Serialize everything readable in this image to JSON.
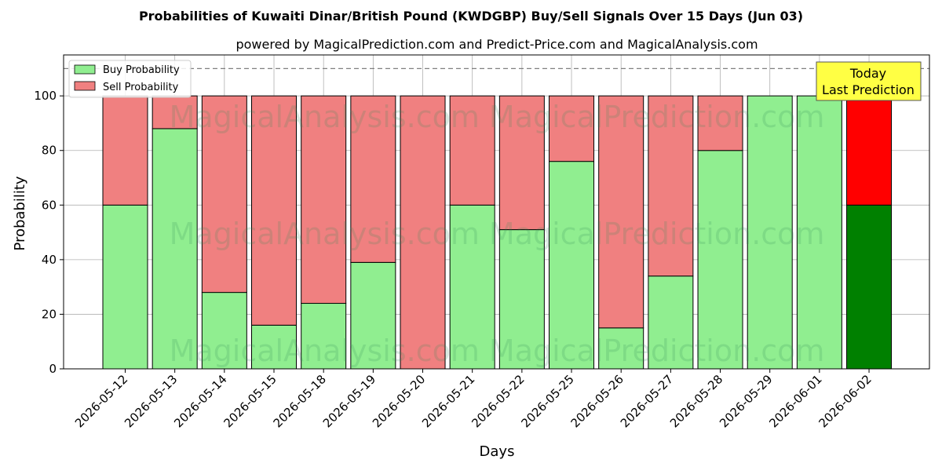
{
  "chart_data": {
    "type": "bar",
    "title": "Probabilities of Kuwaiti Dinar/British Pound (KWDGBP) Buy/Sell Signals Over 15 Days (Jun 03)",
    "subtitle": "powered by MagicalPrediction.com and Predict-Price.com and MagicalAnalysis.com",
    "xlabel": "Days",
    "ylabel": "Probability",
    "ylim": [
      0,
      115
    ],
    "yticks": [
      0,
      20,
      40,
      60,
      80,
      100
    ],
    "grid": true,
    "stacked": true,
    "legend_position": "top-left",
    "reference_line": 110,
    "categories": [
      "2026-05-12",
      "2026-05-13",
      "2026-05-14",
      "2026-05-15",
      "2026-05-18",
      "2026-05-19",
      "2026-05-20",
      "2026-05-21",
      "2026-05-22",
      "2026-05-25",
      "2026-05-26",
      "2026-05-27",
      "2026-05-28",
      "2026-05-29",
      "2026-06-01",
      "2026-06-02"
    ],
    "series": [
      {
        "name": "Buy Probability",
        "color": "#90ee90",
        "values": [
          60,
          88,
          28,
          16,
          24,
          39,
          0,
          60,
          51,
          76,
          15,
          34,
          80,
          100,
          100,
          60
        ]
      },
      {
        "name": "Sell Probability",
        "color": "#f08080",
        "values": [
          40,
          12,
          72,
          84,
          76,
          61,
          100,
          40,
          49,
          24,
          85,
          66,
          20,
          0,
          0,
          40
        ]
      }
    ],
    "highlight": {
      "index": 15,
      "buy_color": "#008000",
      "sell_color": "#ff0000"
    },
    "annotation": {
      "line1": "Today",
      "line2": "Last Prediction",
      "background": "#ffff44"
    },
    "watermark": "MagicalAnalysis.com   MagicalPrediction.com"
  }
}
